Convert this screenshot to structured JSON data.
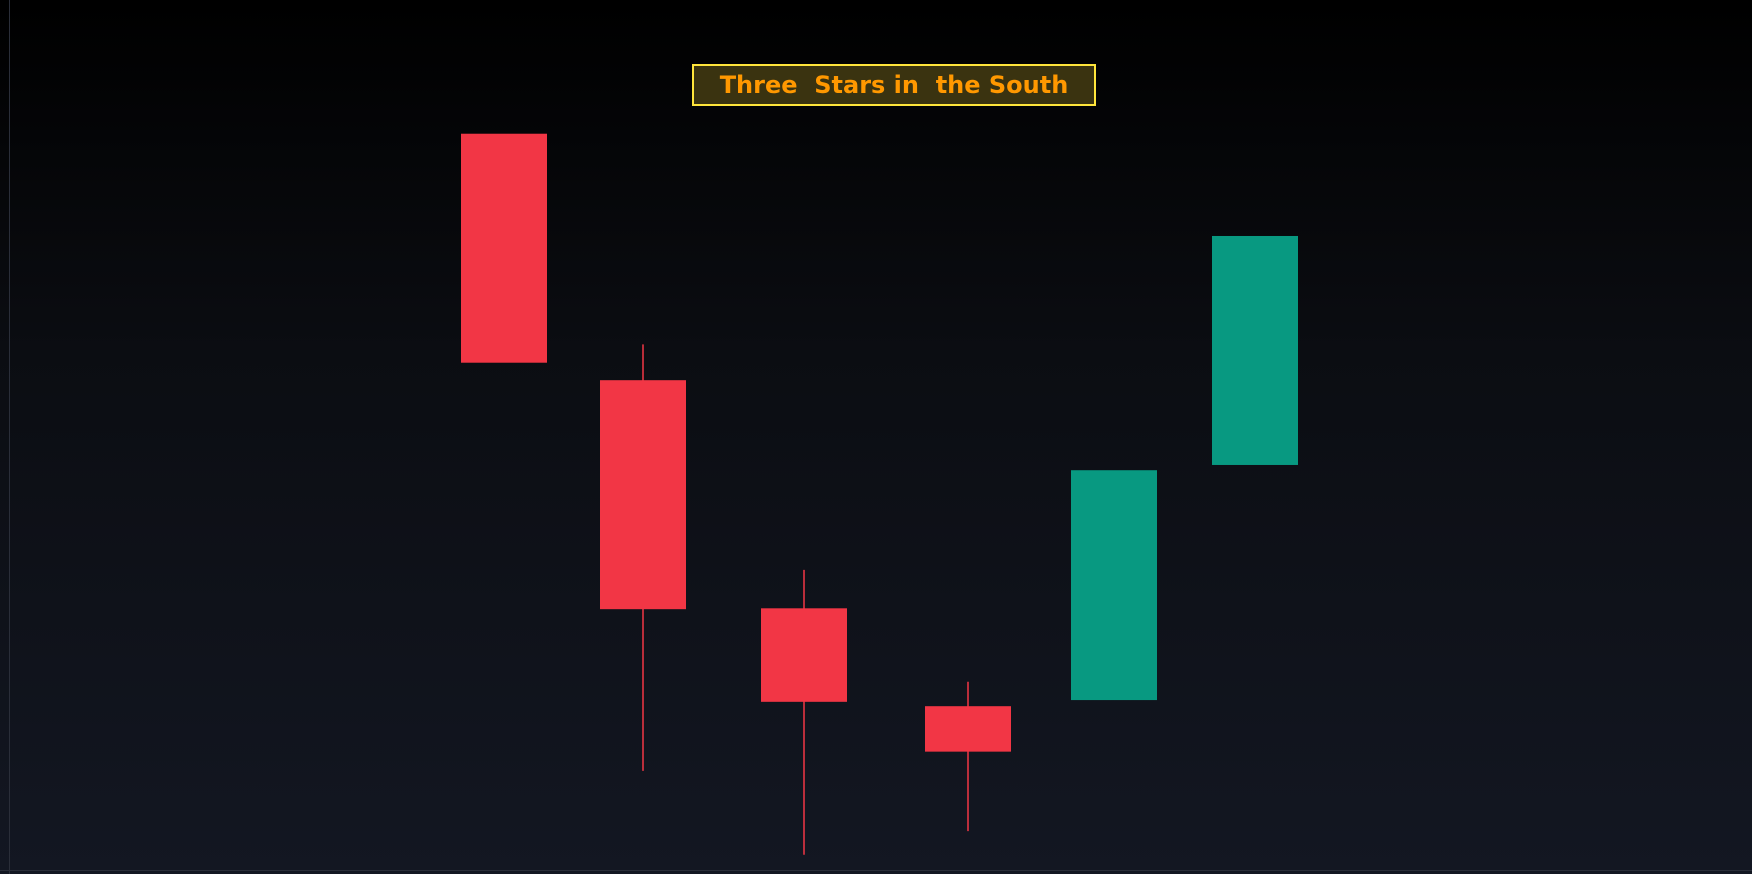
{
  "chart_data": {
    "type": "candlestick",
    "title": "Three  Stars in  the South",
    "ylim": [
      0,
      100
    ],
    "grid": false,
    "colors": {
      "down": "#f23645",
      "up": "#089981",
      "title_text": "#ff9800",
      "title_border": "#ffe53b",
      "title_bg": "#3a3310"
    },
    "candles": [
      {
        "open": 84.7,
        "high": 84.7,
        "low": 58.5,
        "close": 58.5
      },
      {
        "open": 56.5,
        "high": 60.6,
        "low": 11.8,
        "close": 30.3
      },
      {
        "open": 30.4,
        "high": 34.8,
        "low": 2.2,
        "close": 19.7
      },
      {
        "open": 19.2,
        "high": 22.0,
        "low": 4.9,
        "close": 14.0
      },
      {
        "open": 19.9,
        "high": 46.2,
        "low": 19.9,
        "close": 46.2
      },
      {
        "open": 46.8,
        "high": 73.0,
        "low": 46.8,
        "close": 73.0
      }
    ]
  }
}
